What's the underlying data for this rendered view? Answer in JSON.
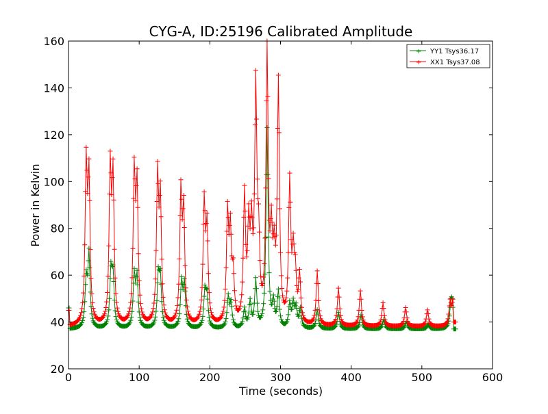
{
  "chart_data": {
    "type": "line",
    "title": "CYG-A, ID:25196 Calibrated Amplitude",
    "xlabel": "Time (seconds)",
    "ylabel": "Power in Kelvin",
    "xlim": [
      0,
      600
    ],
    "ylim": [
      20,
      160
    ],
    "xticks": [
      0,
      100,
      200,
      300,
      400,
      500,
      600
    ],
    "yticks": [
      20,
      40,
      60,
      80,
      100,
      120,
      140,
      160
    ],
    "xtick_labels": [
      "0",
      "100",
      "200",
      "300",
      "400",
      "500",
      "600"
    ],
    "ytick_labels": [
      "20",
      "40",
      "60",
      "80",
      "100",
      "120",
      "140",
      "160"
    ],
    "grid": false,
    "legend_position": "top-right",
    "marker": "+",
    "time_range": [
      0,
      548
    ],
    "sample_step": 1,
    "series": [
      {
        "name": "YY1 Tsys36.17",
        "color": "#008000",
        "baseline": 37,
        "start_values": [
          46,
          46
        ],
        "end_values": [
          37,
          37
        ],
        "peaks": [
          [
            25,
            57
          ],
          [
            29,
            68
          ],
          [
            60,
            60
          ],
          [
            63,
            58
          ],
          [
            93,
            59
          ],
          [
            97,
            58
          ],
          [
            127,
            58
          ],
          [
            130,
            57
          ],
          [
            160,
            56
          ],
          [
            164,
            55
          ],
          [
            193,
            52
          ],
          [
            196,
            50
          ],
          [
            226,
            50
          ],
          [
            230,
            47
          ],
          [
            249,
            45
          ],
          [
            257,
            48
          ],
          [
            265,
            57
          ],
          [
            281,
            122
          ],
          [
            290,
            47
          ],
          [
            297,
            52
          ],
          [
            313,
            47
          ],
          [
            318,
            47
          ],
          [
            322,
            45
          ],
          [
            328,
            45
          ],
          [
            352,
            45
          ],
          [
            382,
            44
          ],
          [
            414,
            43
          ],
          [
            446,
            41
          ],
          [
            478,
            40
          ],
          [
            509,
            39
          ],
          [
            541,
            46
          ],
          [
            543,
            46
          ]
        ]
      },
      {
        "name": "XX1 Tsys37.08",
        "color": "#ff0000",
        "baseline": 38,
        "start_values": [
          45,
          45
        ],
        "end_values": [
          40,
          40
        ],
        "peaks": [
          [
            25,
            104
          ],
          [
            29,
            98
          ],
          [
            59,
            102
          ],
          [
            63,
            98
          ],
          [
            93,
            100
          ],
          [
            97,
            94
          ],
          [
            126,
            99
          ],
          [
            130,
            89
          ],
          [
            159,
            92
          ],
          [
            163,
            84
          ],
          [
            192,
            88
          ],
          [
            196,
            77
          ],
          [
            225,
            83
          ],
          [
            229,
            74
          ],
          [
            233,
            57
          ],
          [
            249,
            91
          ],
          [
            255,
            75
          ],
          [
            259,
            73
          ],
          [
            265,
            135
          ],
          [
            269,
            68
          ],
          [
            281,
            155
          ],
          [
            287,
            71
          ],
          [
            291,
            62
          ],
          [
            297,
            139
          ],
          [
            313,
            97
          ],
          [
            318,
            64
          ],
          [
            321,
            56
          ],
          [
            327,
            58
          ],
          [
            352,
            61
          ],
          [
            382,
            54
          ],
          [
            413,
            53
          ],
          [
            445,
            48
          ],
          [
            477,
            46
          ],
          [
            508,
            45
          ],
          [
            540,
            48
          ],
          [
            544,
            48
          ]
        ]
      }
    ]
  }
}
